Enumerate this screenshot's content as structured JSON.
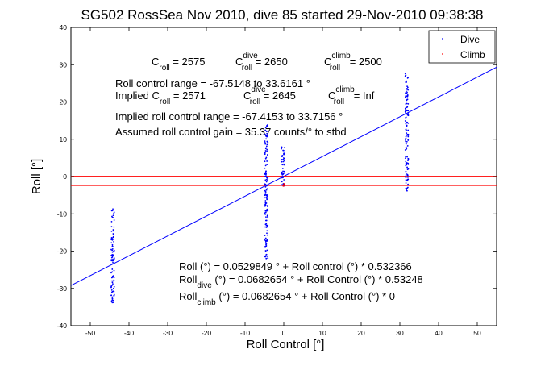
{
  "chart_data": {
    "type": "scatter",
    "title": "SG502 RossSea Nov 2010, dive 85 started 29-Nov-2010 09:38:38",
    "xlabel": "Roll Control [°]",
    "ylabel": "Roll [°]",
    "xlim": [
      -55,
      55
    ],
    "ylim": [
      -40,
      40
    ],
    "xticks": [
      -50,
      -40,
      -30,
      -20,
      -10,
      0,
      10,
      20,
      30,
      40,
      50
    ],
    "yticks": [
      -40,
      -30,
      -20,
      -10,
      0,
      10,
      20,
      30,
      40
    ],
    "grid": false,
    "legend": {
      "placement": "top-right",
      "entries": [
        {
          "label": "Dive",
          "color": "#0000ff"
        },
        {
          "label": "Climb",
          "color": "#ff0000"
        }
      ]
    },
    "series": [
      {
        "name": "Dive",
        "color": "#0000ff",
        "clusters": [
          {
            "x": -44.2,
            "y_range": [
              -34,
              -8
            ]
          },
          {
            "x": -4.5,
            "y_range": [
              -22,
              15
            ]
          },
          {
            "x": -0.2,
            "y_range": [
              -3,
              8
            ]
          },
          {
            "x": 31.8,
            "y_range": [
              -4,
              28
            ]
          }
        ]
      },
      {
        "name": "Climb",
        "color": "#ff0000",
        "points": [
          {
            "x": -0.1,
            "y": -2.5
          },
          {
            "x": 0.1,
            "y": -2.0
          }
        ]
      }
    ],
    "fit_lines": [
      {
        "color": "#0000ff",
        "intercept": 0.0529849,
        "slope": 0.532366
      },
      {
        "color": "#ff0000",
        "intercept": 0.0682654,
        "slope": 0
      }
    ],
    "hline_red_y": -2.4,
    "annotations": {
      "c_line": {
        "c": "C",
        "c_sub": "roll",
        "c_val": " = 2575",
        "cd": "C",
        "cd_sub": "roll",
        "cd_sup": "dive",
        "cd_val": " = 2650",
        "cc": "C",
        "cc_sub": "roll",
        "cc_sup": "climb",
        "cc_val": " = 2500"
      },
      "range1": "Roll control range = -67.5148 to 33.6161 °",
      "implied_line": {
        "i": "Implied C",
        "i_sub": "roll",
        "i_val": " = 2571",
        "id": "C",
        "id_sub": "roll",
        "id_sup": "dive",
        "id_val": " = 2645",
        "ic": "C",
        "ic_sub": "roll",
        "ic_sup": "climb",
        "ic_val": " =  Inf"
      },
      "range2": "Implied roll control range = -67.4153 to 33.7156 °",
      "gain": "Assumed roll control gain = 35.37 counts/° to stbd",
      "fit1": "Roll (°) = 0.0529849 ° + Roll control (°) * 0.532366",
      "fit2_a": "Roll",
      "fit2_sub": "dive",
      "fit2_b": " (°) = 0.0682654 ° + Roll Control (°) * 0.53248",
      "fit3_a": "Roll",
      "fit3_sub": "climb",
      "fit3_b": " (°) = 0.0682654 ° + Roll Control (°) * 0"
    }
  }
}
